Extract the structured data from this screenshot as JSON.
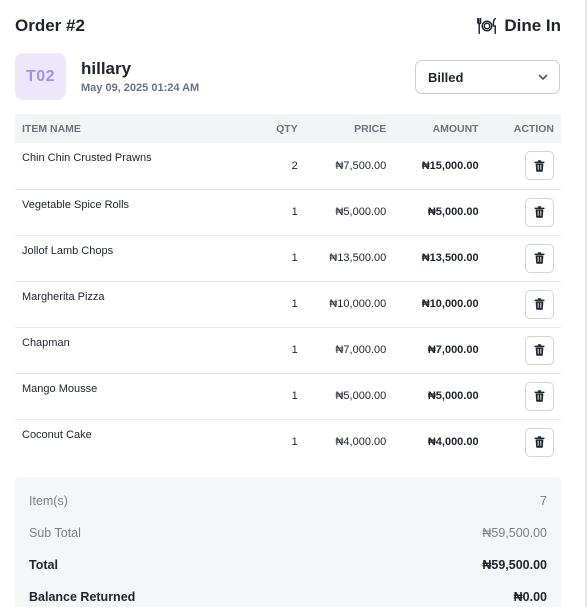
{
  "header": {
    "order_title": "Order #2",
    "order_type": "Dine In",
    "order_type_icon": "dining-icon"
  },
  "customer": {
    "table_label": "T02",
    "name": "hillary",
    "date": "May 09, 2025 01:24 AM"
  },
  "status": {
    "value": "Billed",
    "icon": "chevron-down-icon"
  },
  "table": {
    "headers": {
      "name": "ITEM NAME",
      "qty": "QTY",
      "price": "PRICE",
      "amount": "AMOUNT",
      "action": "ACTION"
    },
    "rows": [
      {
        "name": "Chin Chin Crusted Prawns",
        "qty": "2",
        "price": "₦7,500.00",
        "amount": "₦15,000.00"
      },
      {
        "name": "Vegetable Spice Rolls",
        "qty": "1",
        "price": "₦5,000.00",
        "amount": "₦5,000.00"
      },
      {
        "name": "Jollof Lamb Chops",
        "qty": "1",
        "price": "₦13,500.00",
        "amount": "₦13,500.00"
      },
      {
        "name": "Margherita Pizza",
        "qty": "1",
        "price": "₦10,000.00",
        "amount": "₦10,000.00"
      },
      {
        "name": "Chapman",
        "qty": "1",
        "price": "₦7,000.00",
        "amount": "₦7,000.00"
      },
      {
        "name": "Mango Mousse",
        "qty": "1",
        "price": "₦5,000.00",
        "amount": "₦5,000.00"
      },
      {
        "name": "Coconut Cake",
        "qty": "1",
        "price": "₦4,000.00",
        "amount": "₦4,000.00"
      }
    ],
    "delete_icon": "trash-icon"
  },
  "summary": {
    "items_label": "Item(s)",
    "items_value": "7",
    "subtotal_label": "Sub Total",
    "subtotal_value": "₦59,500.00",
    "total_label": "Total",
    "total_value": "₦59,500.00",
    "balance_label": "Balance Returned",
    "balance_value": "₦0.00"
  },
  "colors": {
    "badge_bg": "#ece7fb",
    "badge_text": "#a48ee8",
    "header_bg": "#f3f4f6",
    "summary_bg": "#f5f6f8"
  }
}
